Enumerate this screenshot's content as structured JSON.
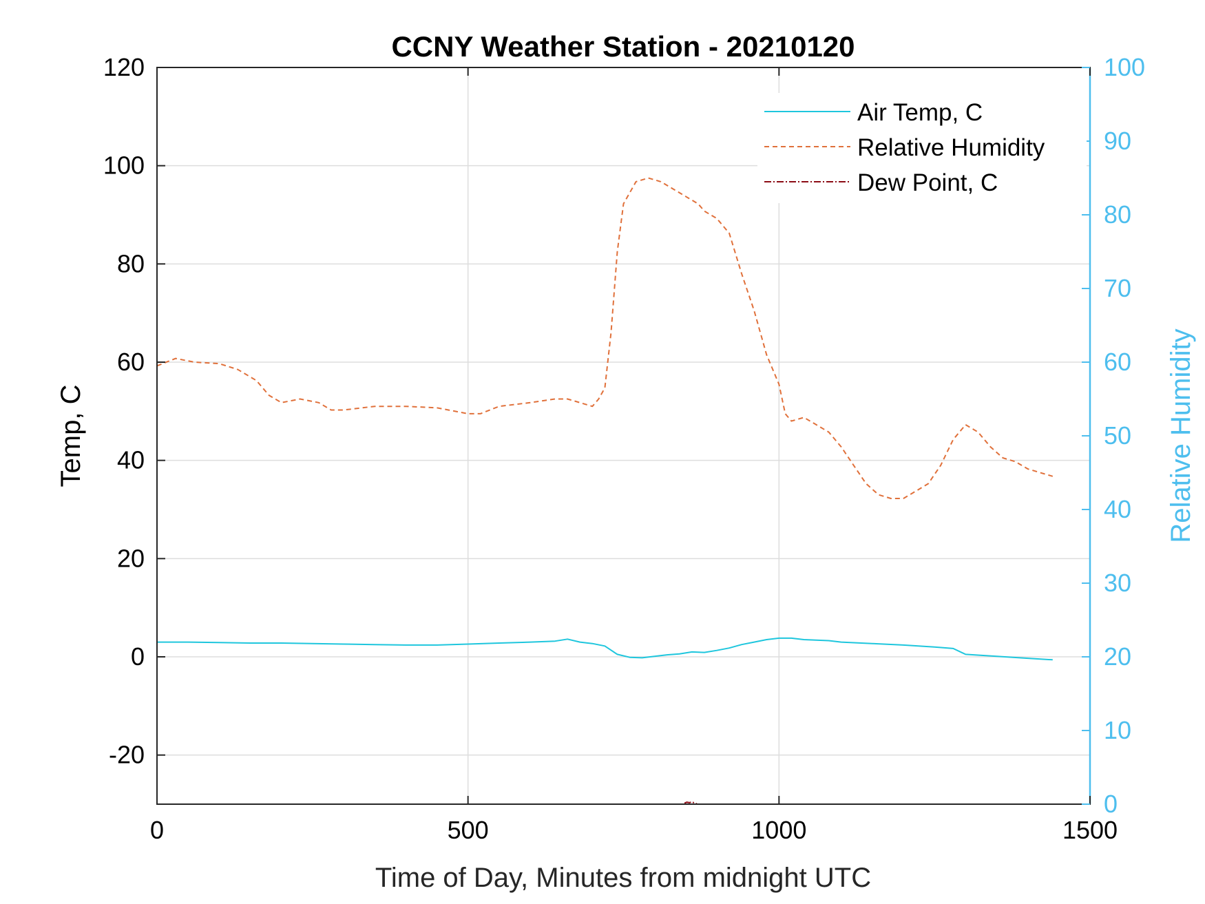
{
  "chart_data": {
    "type": "line",
    "title": "CCNY Weather Station - 20210120",
    "xlabel": "Time of Day, Minutes from midnight UTC",
    "ylabel_left": "Temp, C",
    "ylabel_right": "Relative Humidity",
    "xlim": [
      0,
      1500
    ],
    "ylim_left": [
      -30,
      120
    ],
    "ylim_right": [
      0,
      100
    ],
    "xticks": [
      0,
      500,
      1000,
      1500
    ],
    "yticks_left": [
      -20,
      0,
      20,
      40,
      60,
      80,
      100,
      120
    ],
    "yticks_right": [
      0,
      10,
      20,
      30,
      40,
      50,
      60,
      70,
      80,
      90,
      100
    ],
    "xtick_labels": [
      "0",
      "500",
      "1000",
      "1500"
    ],
    "ytick_labels_left": [
      "-20",
      "0",
      "20",
      "40",
      "60",
      "80",
      "100",
      "120"
    ],
    "ytick_labels_right": [
      "0",
      "10",
      "20",
      "30",
      "40",
      "50",
      "60",
      "70",
      "80",
      "90",
      "100"
    ],
    "grid": true,
    "legend_position": "top-right",
    "colors": {
      "air_temp": "#1ec6dd",
      "relative_humidity": "#e0703a",
      "dew_point": "#8b0a14",
      "right_axis": "#4dbeee",
      "grid": "#dddddd"
    },
    "series": [
      {
        "name": "Air Temp, C",
        "axis": "left",
        "style": "solid",
        "x": [
          0,
          50,
          100,
          150,
          200,
          250,
          300,
          350,
          400,
          450,
          500,
          550,
          600,
          640,
          660,
          680,
          700,
          720,
          740,
          760,
          780,
          800,
          820,
          840,
          860,
          880,
          900,
          920,
          940,
          960,
          980,
          1000,
          1020,
          1040,
          1060,
          1080,
          1100,
          1150,
          1200,
          1250,
          1280,
          1300,
          1350,
          1400,
          1440
        ],
        "values": [
          3.0,
          3.0,
          2.9,
          2.8,
          2.8,
          2.7,
          2.6,
          2.5,
          2.4,
          2.4,
          2.6,
          2.8,
          3.0,
          3.2,
          3.6,
          3.0,
          2.7,
          2.2,
          0.5,
          -0.1,
          -0.2,
          0.1,
          0.4,
          0.6,
          1.0,
          0.9,
          1.3,
          1.8,
          2.5,
          3.0,
          3.5,
          3.8,
          3.8,
          3.5,
          3.4,
          3.3,
          3.0,
          2.7,
          2.4,
          2.0,
          1.7,
          0.5,
          0.1,
          -0.3,
          -0.6
        ]
      },
      {
        "name": "Relative Humidity",
        "axis": "right",
        "style": "dashed",
        "x": [
          0,
          30,
          60,
          100,
          130,
          160,
          180,
          200,
          230,
          260,
          280,
          300,
          350,
          400,
          450,
          500,
          520,
          550,
          600,
          640,
          660,
          680,
          700,
          710,
          720,
          730,
          740,
          750,
          770,
          790,
          810,
          830,
          850,
          870,
          880,
          900,
          920,
          940,
          960,
          980,
          1000,
          1010,
          1020,
          1040,
          1060,
          1080,
          1100,
          1120,
          1140,
          1160,
          1180,
          1200,
          1220,
          1240,
          1260,
          1280,
          1300,
          1320,
          1340,
          1360,
          1380,
          1400,
          1420,
          1440
        ],
        "values": [
          59.5,
          60.5,
          60.0,
          59.8,
          59.0,
          57.5,
          55.5,
          54.5,
          55.0,
          54.5,
          53.5,
          53.5,
          54.0,
          54.0,
          53.8,
          53.0,
          53.0,
          54.0,
          54.5,
          55.0,
          55.0,
          54.5,
          54.0,
          55.0,
          56.5,
          64.0,
          75.0,
          81.5,
          84.5,
          85.0,
          84.5,
          83.5,
          82.5,
          81.5,
          80.5,
          79.5,
          77.5,
          72.0,
          67.0,
          61.0,
          57.0,
          53.0,
          52.0,
          52.5,
          51.5,
          50.5,
          48.5,
          46.0,
          43.5,
          42.0,
          41.5,
          41.5,
          42.5,
          43.5,
          46.0,
          49.5,
          51.5,
          50.5,
          48.5,
          47.0,
          46.5,
          45.5,
          45.0,
          44.5
        ]
      },
      {
        "name": "Dew Point, C",
        "axis": "left",
        "style": "dash-dot",
        "x": [
          848,
          852,
          856,
          860,
          864,
          868
        ],
        "values": [
          -29.8,
          -29.6,
          -29.7,
          -29.5,
          -29.8,
          -29.9
        ]
      }
    ]
  }
}
